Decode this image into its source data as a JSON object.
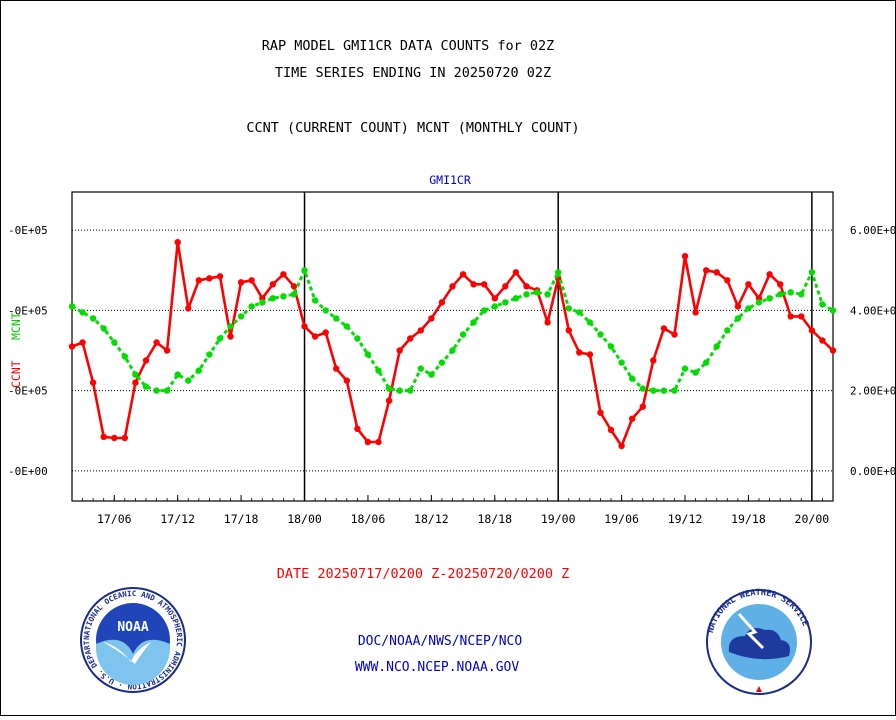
{
  "header": {
    "title_line1": "RAP MODEL GMI1CR DATA COUNTS for 02Z",
    "title_line2": "TIME SERIES ENDING IN 20250720 02Z",
    "subtitle": "CCNT (CURRENT COUNT) MCNT (MONTHLY COUNT)"
  },
  "footer": {
    "date_range": "DATE 20250717/0200 Z-20250720/0200 Z",
    "org_line": "DOC/NOAA/NWS/NCEP/NCO",
    "url_line": "WWW.NCO.NCEP.NOAA.GOV"
  },
  "logos": {
    "noaa_text": "NOAA",
    "noaa_ring": "NATIONAL OCEANIC AND ATMOSPHERIC ADMINISTRATION · U.S. DEPARTMENT OF COMMERCE ·",
    "nws_ring": "NATIONAL WEATHER SERVICE"
  },
  "colors": {
    "ccnt": "#ff0000",
    "mcnt": "#00dd00",
    "axis": "#000000",
    "plot_title": "#0000cc",
    "footer_date": "#ff0000",
    "footer_links": "#0000cc"
  },
  "chart_data": {
    "type": "line",
    "title": "GMI1CR",
    "left_axis_label_ccnt": "CCNT",
    "right_axis_label_mcnt": "MCNT",
    "left_ticks": [
      "-0E+00",
      "-0E+05",
      "-0E+05",
      "-0E+05"
    ],
    "right_ticks": [
      "0.00E+0",
      "2.00E+0",
      "4.00E+0",
      "6.00E+0"
    ],
    "right_tick_values": [
      0,
      2,
      4,
      6
    ],
    "x_ticks": [
      "17/06",
      "17/12",
      "17/18",
      "18/00",
      "18/06",
      "18/12",
      "18/18",
      "19/00",
      "19/06",
      "19/12",
      "19/18",
      "20/00"
    ],
    "x_tick_hours": [
      4,
      10,
      16,
      22,
      28,
      34,
      40,
      46,
      52,
      58,
      64,
      70
    ],
    "day_boundaries_hours": [
      22,
      46,
      70
    ],
    "x_range_hours": [
      0,
      72
    ],
    "y_range": [
      -0.75,
      6.95
    ],
    "gridlines_y": [
      0,
      2,
      4,
      6
    ],
    "grid": true,
    "series": [
      {
        "name": "CCNT",
        "values": [
          3.1,
          3.2,
          2.2,
          0.85,
          0.82,
          0.82,
          2.2,
          2.75,
          3.2,
          3.0,
          5.7,
          4.05,
          4.75,
          4.8,
          4.85,
          3.35,
          4.7,
          4.75,
          4.3,
          4.65,
          4.9,
          4.6,
          3.6,
          3.35,
          3.45,
          2.55,
          2.25,
          1.05,
          0.72,
          0.72,
          1.75,
          3.0,
          3.3,
          3.5,
          3.8,
          4.2,
          4.6,
          4.9,
          4.65,
          4.65,
          4.3,
          4.6,
          4.95,
          4.6,
          4.5,
          3.7,
          4.8,
          3.5,
          2.95,
          2.9,
          1.45,
          1.02,
          0.62,
          1.3,
          1.6,
          2.75,
          3.55,
          3.4,
          5.35,
          3.95,
          5.0,
          4.95,
          4.75,
          4.1,
          4.65,
          4.3,
          4.9,
          4.65,
          3.85,
          3.85,
          3.5,
          3.25,
          3.0
        ]
      },
      {
        "name": "MCNT",
        "values": [
          4.1,
          3.95,
          3.8,
          3.55,
          3.2,
          2.85,
          2.4,
          2.1,
          2.0,
          2.0,
          2.4,
          2.25,
          2.5,
          2.9,
          3.3,
          3.6,
          3.85,
          4.1,
          4.2,
          4.3,
          4.35,
          4.4,
          5.0,
          4.25,
          4.0,
          3.8,
          3.6,
          3.3,
          2.9,
          2.5,
          2.05,
          2.0,
          2.0,
          2.55,
          2.4,
          2.7,
          3.0,
          3.4,
          3.7,
          4.0,
          4.1,
          4.2,
          4.3,
          4.4,
          4.45,
          4.4,
          4.95,
          4.05,
          3.95,
          3.7,
          3.4,
          3.1,
          2.7,
          2.3,
          2.05,
          2.0,
          2.0,
          2.0,
          2.55,
          2.45,
          2.7,
          3.1,
          3.5,
          3.8,
          4.05,
          4.2,
          4.3,
          4.4,
          4.45,
          4.4,
          4.95,
          4.15,
          4.0
        ]
      }
    ]
  }
}
